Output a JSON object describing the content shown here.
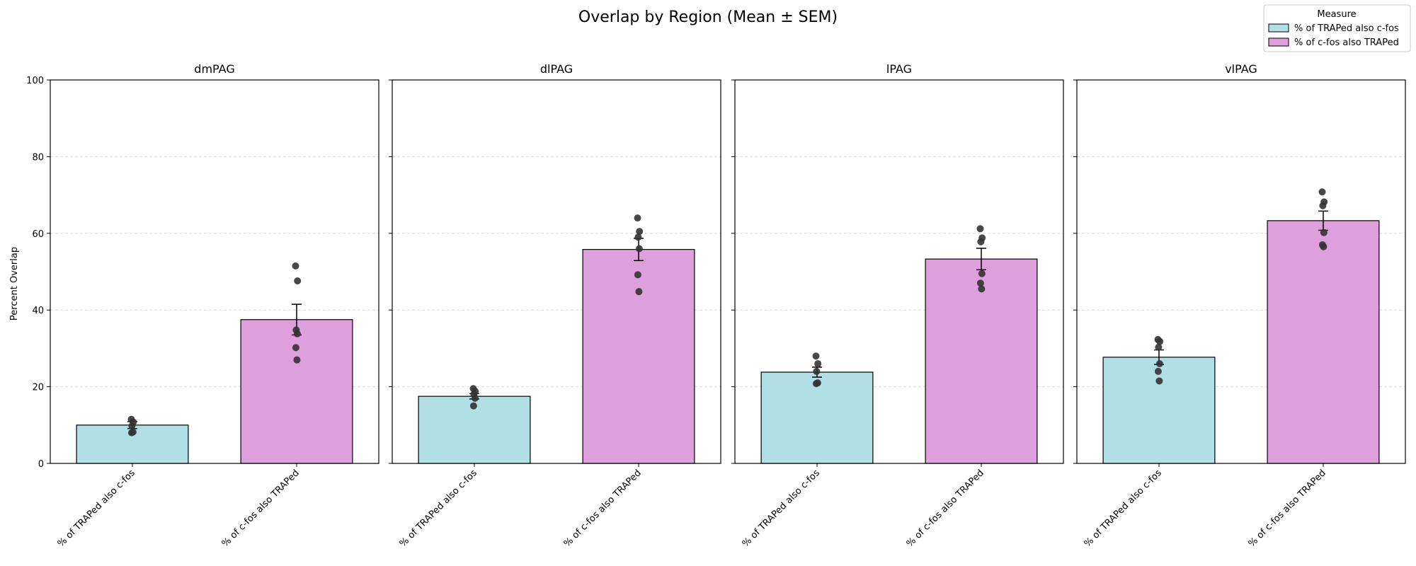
{
  "chart_data": {
    "type": "bar",
    "title": "Overlap by Region (Mean ± SEM)",
    "ylabel": "Percent Overlap",
    "ylim": [
      0,
      100
    ],
    "yticks": [
      0,
      20,
      40,
      60,
      80,
      100
    ],
    "grid": "horizontal dashed",
    "categories": [
      "% of TRAPed also c-fos",
      "% of c-fos also TRAPed"
    ],
    "legend": {
      "title": "Measure",
      "placement": "top-right",
      "entries": [
        {
          "label": "% of TRAPed also c-fos",
          "color": "#b0e0e6"
        },
        {
          "label": "% of c-fos also TRAPed",
          "color": "#dda0dd"
        }
      ]
    },
    "panels": [
      {
        "region": "dmPAG",
        "series": [
          {
            "name": "% of TRAPed also c-fos",
            "mean": 10.0,
            "sem": 0.9,
            "points": [
              11.5,
              10.8,
              9.8,
              8.2,
              8.0
            ]
          },
          {
            "name": "% of c-fos also TRAPed",
            "mean": 37.5,
            "sem": 4.0,
            "points": [
              51.5,
              47.6,
              34.8,
              33.8,
              30.2,
              27.0
            ]
          }
        ]
      },
      {
        "region": "dlPAG",
        "series": [
          {
            "name": "% of TRAPed also c-fos",
            "mean": 17.5,
            "sem": 0.7,
            "points": [
              19.5,
              18.8,
              18.0,
              17.0,
              15.0
            ]
          },
          {
            "name": "% of c-fos also TRAPed",
            "mean": 55.8,
            "sem": 2.9,
            "points": [
              64.0,
              60.5,
              59.0,
              56.0,
              49.2,
              44.8
            ]
          }
        ]
      },
      {
        "region": "lPAG",
        "series": [
          {
            "name": "% of TRAPed also c-fos",
            "mean": 23.8,
            "sem": 1.3,
            "points": [
              28.0,
              26.0,
              24.0,
              21.0,
              20.8
            ]
          },
          {
            "name": "% of c-fos also TRAPed",
            "mean": 53.3,
            "sem": 2.8,
            "points": [
              61.2,
              58.8,
              57.8,
              49.5,
              47.0,
              45.5
            ]
          }
        ]
      },
      {
        "region": "vlPAG",
        "series": [
          {
            "name": "% of TRAPed also c-fos",
            "mean": 27.7,
            "sem": 1.9,
            "points": [
              32.3,
              31.8,
              30.3,
              26.0,
              24.0,
              21.5
            ]
          },
          {
            "name": "% of c-fos also TRAPed",
            "mean": 63.3,
            "sem": 2.5,
            "points": [
              70.8,
              68.2,
              67.2,
              60.2,
              57.0,
              56.5
            ]
          }
        ]
      }
    ]
  }
}
